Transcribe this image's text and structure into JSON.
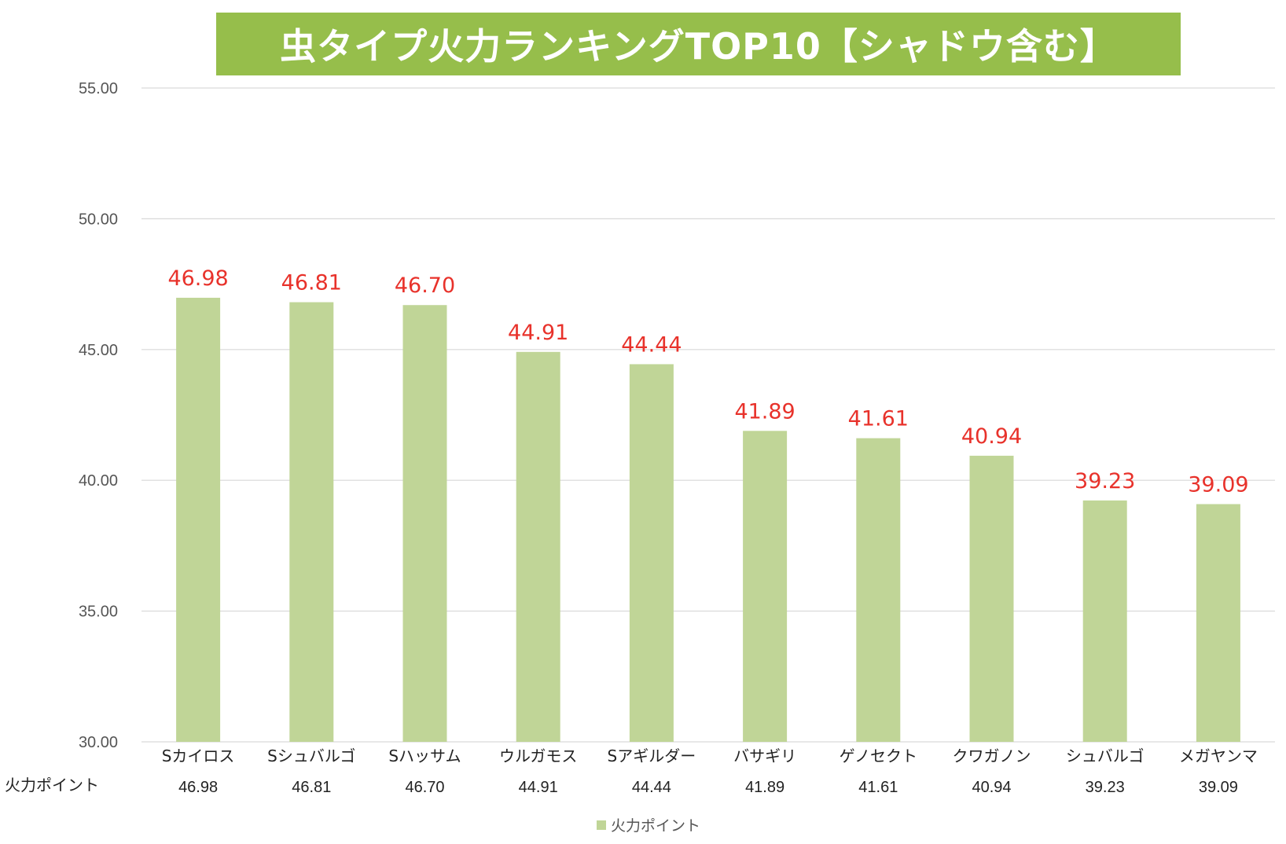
{
  "chart_data": {
    "type": "bar",
    "title": "虫タイプ火力ランキングTOP10【シャドウ含む】",
    "categories": [
      "Sカイロス",
      "Sシュバルゴ",
      "Sハッサム",
      "ウルガモス",
      "Sアギルダー",
      "バサギリ",
      "ゲノセクト",
      "クワガノン",
      "シュバルゴ",
      "メガヤンマ"
    ],
    "series": [
      {
        "name": "火力ポイント",
        "values": [
          46.98,
          46.81,
          46.7,
          44.91,
          44.44,
          41.89,
          41.61,
          40.94,
          39.23,
          39.09
        ]
      }
    ],
    "data_labels": [
      "46.98",
      "46.81",
      "46.70",
      "44.91",
      "44.44",
      "41.89",
      "41.61",
      "40.94",
      "39.23",
      "39.09"
    ],
    "data_table": {
      "row_header": "火力ポイント",
      "values": [
        "46.98",
        "46.81",
        "46.70",
        "44.91",
        "44.44",
        "41.89",
        "41.61",
        "40.94",
        "39.23",
        "39.09"
      ]
    },
    "ylim": [
      30,
      55
    ],
    "yticks": [
      "30.00",
      "35.00",
      "40.00",
      "45.00",
      "50.00",
      "55.00"
    ],
    "ytick_values": [
      30,
      35,
      40,
      45,
      50,
      55
    ],
    "grid": true,
    "legend": {
      "position": "bottom",
      "label": "火力ポイント"
    },
    "colors": {
      "bar": "#c0d597",
      "data_label": "#e8322b",
      "title_bg": "#96be4b",
      "title_text": "#ffffff",
      "grid": "#d9d9d9"
    }
  }
}
